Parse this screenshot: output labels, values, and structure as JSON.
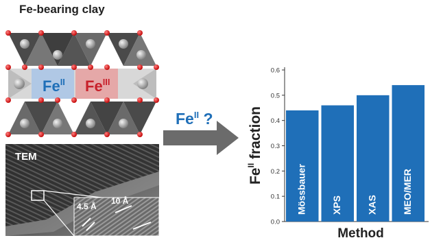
{
  "header": {
    "title": "Fe-bearing clay"
  },
  "clay": {
    "label_fe2_base": "Fe",
    "label_fe2_sup": "II",
    "label_fe3_base": "Fe",
    "label_fe3_sup": "III",
    "color_fe2": "#1f6fb8",
    "color_fe3": "#c8202a"
  },
  "tem": {
    "label": "TEM",
    "scale_a": "4.5 Å",
    "scale_b": "10 Å"
  },
  "arrow": {
    "base": "Fe",
    "sup": "II",
    "suffix": " ?"
  },
  "chart_data": {
    "type": "bar",
    "categories": [
      "Mössbauer",
      "XPS",
      "XAS",
      "MEO/MER"
    ],
    "values": [
      0.44,
      0.46,
      0.5,
      0.54
    ],
    "ylabel_base": "Fe",
    "ylabel_sup": "II",
    "ylabel_suffix": " fraction",
    "xlabel": "Method",
    "ylim": [
      0,
      0.6
    ],
    "yticks": [
      "0.0",
      "0.1",
      "0.2",
      "0.3",
      "0.4",
      "0.5",
      "0.6"
    ],
    "bar_color": "#1f6fb8"
  }
}
